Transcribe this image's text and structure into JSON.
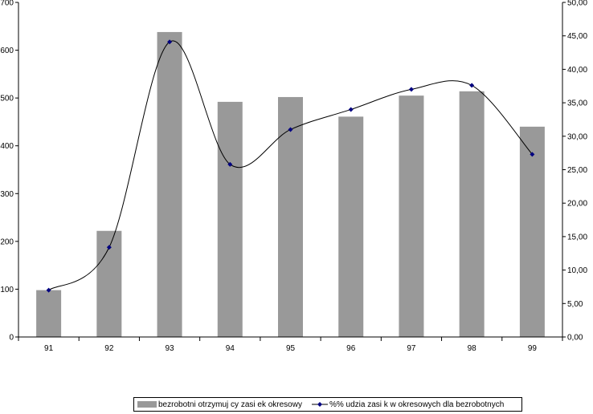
{
  "chart_data": {
    "type": "bar",
    "categories": [
      "91",
      "92",
      "93",
      "94",
      "95",
      "96",
      "97",
      "98",
      "99"
    ],
    "series": [
      {
        "name": "bezrobotni otrzymuj cy zasi ek okresowy",
        "type": "bar",
        "axis": "left",
        "color": "#999999",
        "values": [
          98,
          222,
          638,
          492,
          502,
          461,
          505,
          514,
          440
        ]
      },
      {
        "name": "%% udzia  zasi k  w okresowych dla bezrobotnych",
        "type": "line",
        "axis": "right",
        "color": "#000080",
        "values": [
          7.0,
          13.4,
          44.1,
          25.8,
          31.0,
          34.0,
          37.0,
          37.6,
          27.3
        ]
      }
    ],
    "y_left": {
      "lim": [
        0,
        700
      ],
      "ticks": [
        "0",
        "100",
        "200",
        "300",
        "400",
        "500",
        "600",
        "700"
      ]
    },
    "y_right": {
      "lim": [
        0,
        50
      ],
      "ticks": [
        "0,00",
        "5,00",
        "10,00",
        "15,00",
        "20,00",
        "25,00",
        "30,00",
        "35,00",
        "40,00",
        "45,00",
        "50,00"
      ]
    },
    "grid": false,
    "legend": "bottom"
  }
}
